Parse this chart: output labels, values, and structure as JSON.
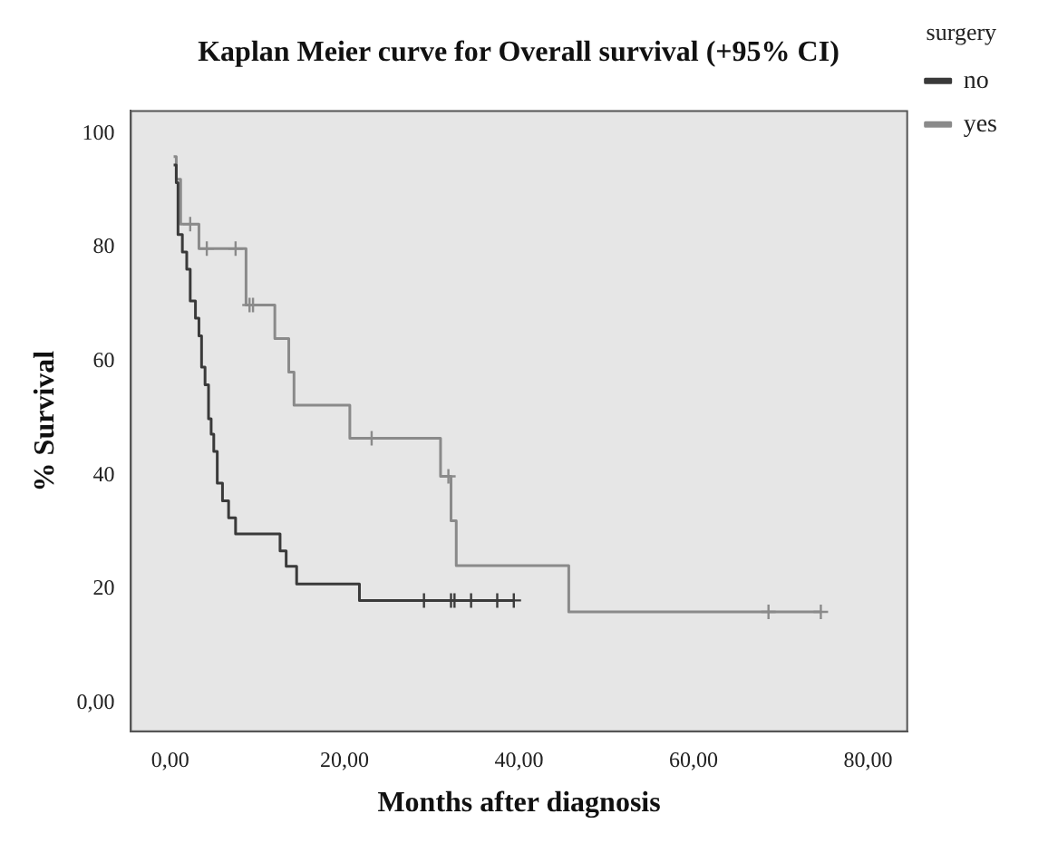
{
  "chart_data": {
    "type": "step",
    "title": "Kaplan Meier curve for Overall survival (+95% CI)",
    "xlabel": "Months after diagnosis",
    "ylabel": "% Survival",
    "legend_title": "surgery",
    "legend": "top right",
    "grid": false,
    "xlim": [
      -4.5,
      84.5
    ],
    "ylim": [
      -5,
      104
    ],
    "xticks": [
      {
        "value": 0,
        "label": "0,00"
      },
      {
        "value": 20,
        "label": "20,00"
      },
      {
        "value": 40,
        "label": "40,00"
      },
      {
        "value": 60,
        "label": "60,00"
      },
      {
        "value": 80,
        "label": "80,00"
      }
    ],
    "yticks": [
      {
        "value": 0,
        "label": "0,00"
      },
      20,
      40,
      60,
      80,
      100
    ],
    "series": [
      {
        "name": "no",
        "color": "#3a3a3a",
        "marker": "none",
        "x": [
          0.4,
          0.7,
          0.9,
          1.4,
          1.9,
          2.3,
          2.9,
          3.3,
          3.6,
          4.0,
          4.4,
          4.7,
          5.0,
          5.4,
          6.0,
          6.7,
          7.5,
          12.6,
          13.3,
          14.5,
          21.7,
          39.4
        ],
        "values": [
          94.5,
          91.4,
          82.3,
          79.2,
          76.2,
          70.6,
          67.6,
          64.5,
          59,
          55.9,
          49.9,
          47.2,
          44.2,
          38.6,
          35.5,
          32.5,
          29.7,
          26.7,
          24,
          20.9,
          18,
          18
        ]
      },
      {
        "name": "yes",
        "color": "#8a8a8a",
        "marker": "none",
        "x": [
          0.4,
          0.7,
          1.2,
          3.3,
          8.7,
          12.0,
          13.6,
          14.2,
          20.6,
          31.0,
          32.2,
          32.8,
          45.7,
          74.6
        ],
        "values": [
          96,
          92,
          84.1,
          79.8,
          69.9,
          64,
          58.1,
          52.3,
          46.5,
          39.8,
          32,
          24.1,
          16,
          16
        ]
      },
      {
        "type": "scatter",
        "color": "#3a3a3a",
        "marker": "cross",
        "x": [
          29.1,
          32.2,
          32.6,
          34.5,
          37.5,
          39.4
        ],
        "values": [
          18,
          18,
          18,
          18,
          18,
          18
        ]
      },
      {
        "type": "scatter",
        "color": "#8a8a8a",
        "marker": "cross",
        "x": [
          2.3,
          4.2,
          7.5,
          9.1,
          9.5,
          23.1,
          31.9,
          68.6,
          74.6
        ],
        "values": [
          84.1,
          79.8,
          79.8,
          69.9,
          69.9,
          46.5,
          39.8,
          16,
          16
        ]
      }
    ]
  }
}
